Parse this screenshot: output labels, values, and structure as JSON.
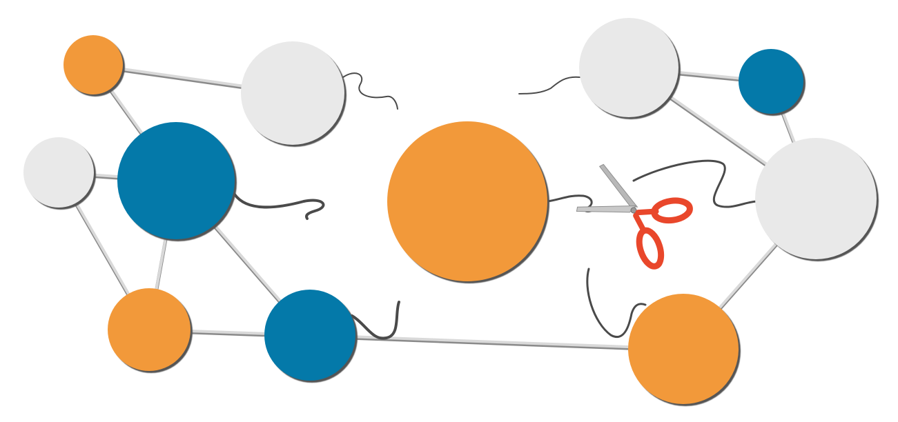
{
  "colors": {
    "orange": "#f2993a",
    "blue": "#0479a9",
    "light_gray": "#e9e9e9",
    "link": "#8a8a8a",
    "link_light": "#d9d9d9",
    "shadow": "#555555",
    "string": "#4a4a4a",
    "scissors_handle": "#e9472b",
    "scissors_blade": "#b8b8b8"
  },
  "diagram": {
    "description_type": "network-graph-with-cut-connection",
    "nodes": [
      {
        "id": "n1",
        "color": "orange"
      },
      {
        "id": "n2",
        "color": "light_gray"
      },
      {
        "id": "n3",
        "color": "light_gray"
      },
      {
        "id": "n4",
        "color": "blue"
      },
      {
        "id": "n5",
        "color": "orange"
      },
      {
        "id": "n6",
        "color": "blue"
      },
      {
        "id": "n7",
        "color": "orange"
      },
      {
        "id": "n8",
        "color": "light_gray"
      },
      {
        "id": "n9",
        "color": "blue"
      },
      {
        "id": "n10",
        "color": "light_gray"
      },
      {
        "id": "n11",
        "color": "orange"
      }
    ],
    "edges": [
      [
        "n1",
        "n2"
      ],
      [
        "n1",
        "n4"
      ],
      [
        "n3",
        "n4"
      ],
      [
        "n3",
        "n5"
      ],
      [
        "n4",
        "n5"
      ],
      [
        "n4",
        "n6"
      ],
      [
        "n5",
        "n6"
      ],
      [
        "n6",
        "n11"
      ],
      [
        "n8",
        "n9"
      ],
      [
        "n8",
        "n10"
      ],
      [
        "n9",
        "n10"
      ],
      [
        "n10",
        "n11"
      ]
    ],
    "cut_edge": [
      "n7",
      "n10"
    ],
    "icon": "scissors-icon"
  }
}
